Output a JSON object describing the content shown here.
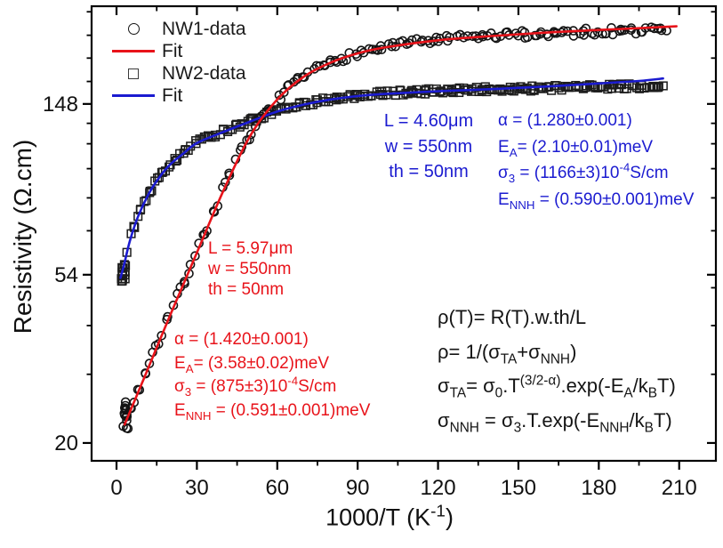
{
  "colors": {
    "red": "#e8131a",
    "blue": "#1b1bd0",
    "marker": "#1a1a1a",
    "axis": "#000000"
  },
  "legend": {
    "items": [
      {
        "swatch": "circle",
        "label": "NW1-data"
      },
      {
        "swatch": "line-red",
        "label": "Fit"
      },
      {
        "swatch": "square",
        "label": "NW2-data"
      },
      {
        "swatch": "line-blue",
        "label": "Fit"
      }
    ]
  },
  "annotations": {
    "nw2_size": {
      "lines": [
        "L = 4.60μm",
        "w = 550nm",
        "th = 50nm"
      ]
    },
    "nw2_params": {
      "lines": [
        "α = (1.280±0.001)",
        "E_{A}= (2.10±0.01)meV",
        "σ_{3} = (1166±3)10^{-4}S/cm",
        "E_{NNH} = (0.590±0.001)meV"
      ]
    },
    "nw1_size": {
      "lines": [
        "L = 5.97μm",
        "w = 550nm",
        "th = 50nm"
      ]
    },
    "nw1_params": {
      "lines": [
        "α = (1.420±0.001)",
        "E_{A}= (3.58±0.02)meV",
        "σ_{3} = (875±3)10^{-4}S/cm",
        "E_{NNH} = (0.591±0.001)meV"
      ]
    },
    "equations": {
      "lines": [
        "ρ(T)= R(T).w.th/L",
        "ρ= 1/(σ_{TA}+σ_{NNH})",
        "σ_{TA}= σ_{0}.T^{(3/2-α)}.exp(-E_{A}/k_{B}T)",
        "σ_{NNH} = σ_{3}.T.exp(-E_{NNH}/k_{B}T)"
      ]
    }
  },
  "chart_data": {
    "type": "scatter",
    "x_axis": {
      "label": "1000/T (K^{-1})",
      "scale": "linear",
      "range": [
        -9.3,
        223.7
      ],
      "major_ticks": [
        0,
        30,
        60,
        90,
        120,
        150,
        180,
        210
      ],
      "minor_ticks": [
        15,
        45,
        75,
        105,
        135,
        165,
        195
      ]
    },
    "y_axis": {
      "label": "Resistivity (Ω.cm)",
      "scale": "log",
      "range": [
        18.0,
        263.5
      ],
      "major_ticks": [
        20,
        54,
        148
      ],
      "minor_ticks": [
        30,
        40,
        50,
        70,
        85,
        101,
        117,
        132,
        169,
        194,
        222,
        255
      ]
    },
    "legend_position": "top-left",
    "grid": false,
    "series": [
      {
        "name": "NW2-data",
        "kind": "scatter",
        "marker": "square",
        "color": "#1c1c1c",
        "points": [
          [
            2,
            54
          ],
          [
            3,
            58.5
          ],
          [
            5,
            66.5
          ],
          [
            8,
            76.5
          ],
          [
            12,
            87.5
          ],
          [
            16,
            96.5
          ],
          [
            20,
            104
          ],
          [
            25,
            111
          ],
          [
            30,
            118
          ],
          [
            35,
            122
          ],
          [
            40,
            126
          ],
          [
            45,
            130
          ],
          [
            50,
            134
          ],
          [
            55,
            138
          ],
          [
            60,
            142
          ],
          [
            70,
            148
          ],
          [
            80,
            152.5
          ],
          [
            90,
            155.5
          ],
          [
            100,
            157.5
          ],
          [
            120,
            160
          ],
          [
            140,
            161.5
          ],
          [
            160,
            162.5
          ],
          [
            180,
            163.5
          ],
          [
            205,
            165
          ]
        ],
        "render": {
          "n": 240,
          "x_start": 2,
          "x_end": 204,
          "x_jitter": 0.8,
          "y_scatter": 0.016,
          "seed": 13,
          "cluster": {
            "x": [
              1.7,
              3.4
            ],
            "y": [
              51.5,
              57.5
            ],
            "n": 12
          }
        }
      },
      {
        "name": "NW1-data",
        "kind": "scatter",
        "marker": "circle",
        "color": "#141414",
        "points": [
          [
            3,
            22.5
          ],
          [
            5,
            24.2
          ],
          [
            8,
            27.2
          ],
          [
            12,
            31.6
          ],
          [
            16,
            36.9
          ],
          [
            20,
            42.8
          ],
          [
            25,
            51.5
          ],
          [
            30,
            62
          ],
          [
            35,
            74.5
          ],
          [
            40,
            90
          ],
          [
            45,
            107
          ],
          [
            50,
            124
          ],
          [
            55,
            139
          ],
          [
            60,
            152
          ],
          [
            65,
            164
          ],
          [
            70,
            174
          ],
          [
            75,
            182
          ],
          [
            80,
            189
          ],
          [
            85,
            195
          ],
          [
            90,
            200
          ],
          [
            100,
            207
          ],
          [
            110,
            212
          ],
          [
            120,
            216
          ],
          [
            135,
            220
          ],
          [
            150,
            223
          ],
          [
            165,
            225
          ],
          [
            180,
            227
          ],
          [
            200,
            229
          ],
          [
            205,
            229.8
          ]
        ],
        "render": {
          "n": 168,
          "x_start": 3,
          "x_end": 205,
          "x_jitter": 1.0,
          "y_scatter": 0.022,
          "seed": 7,
          "cluster": {
            "x": [
              2.7,
              4.3
            ],
            "y": [
              21.5,
              25.7
            ],
            "n": 14
          }
        }
      },
      {
        "name": "NW2-fit",
        "kind": "line",
        "color": "#1b1bd0",
        "stroke_width": 2.6,
        "points": [
          [
            1.5,
            53
          ],
          [
            3,
            58
          ],
          [
            5,
            66
          ],
          [
            8,
            76
          ],
          [
            12,
            87
          ],
          [
            16,
            96
          ],
          [
            20,
            103.5
          ],
          [
            25,
            110.5
          ],
          [
            30,
            117.5
          ],
          [
            40,
            125.5
          ],
          [
            50,
            133.5
          ],
          [
            60,
            141.5
          ],
          [
            70,
            147.5
          ],
          [
            80,
            152
          ],
          [
            90,
            155
          ],
          [
            100,
            157
          ],
          [
            120,
            159.5
          ],
          [
            140,
            161.5
          ],
          [
            160,
            164
          ],
          [
            180,
            167
          ],
          [
            195,
            169.5
          ],
          [
            204,
            172
          ]
        ]
      },
      {
        "name": "NW1-fit",
        "kind": "line",
        "color": "#e8131a",
        "stroke_width": 2.6,
        "points": [
          [
            3,
            22.3
          ],
          [
            10,
            29
          ],
          [
            20,
            42.5
          ],
          [
            30,
            61.5
          ],
          [
            40,
            89
          ],
          [
            50,
            123
          ],
          [
            60,
            152
          ],
          [
            70,
            174
          ],
          [
            80,
            189
          ],
          [
            90,
            199.5
          ],
          [
            100,
            206.5
          ],
          [
            120,
            215.5
          ],
          [
            140,
            221
          ],
          [
            160,
            225.5
          ],
          [
            180,
            229
          ],
          [
            195,
            231.5
          ],
          [
            209,
            234
          ]
        ]
      }
    ]
  }
}
